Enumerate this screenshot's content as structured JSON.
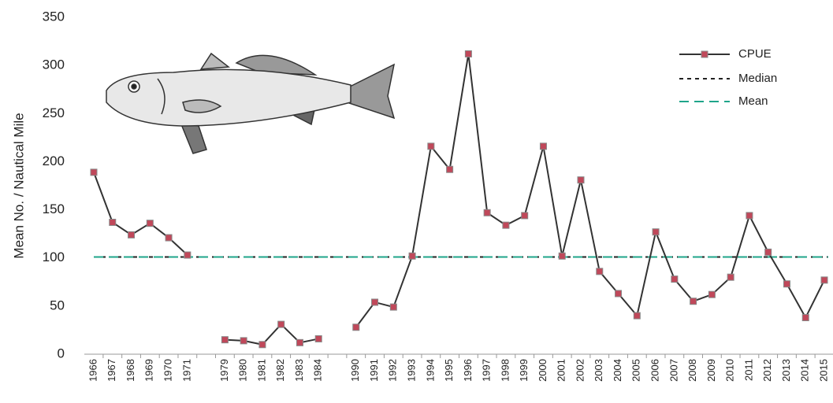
{
  "chart_data": {
    "type": "line",
    "y_label": "Mean No. / Nautical Mile",
    "categories": [
      "1966",
      "1967",
      "1968",
      "1969",
      "1970",
      "1971",
      null,
      "1979",
      "1980",
      "1981",
      "1982",
      "1983",
      "1984",
      null,
      "1990",
      "1991",
      "1992",
      "1993",
      "1994",
      "1995",
      "1996",
      "1997",
      "1998",
      "1999",
      "2000",
      "2001",
      "2002",
      "2003",
      "2004",
      "2005",
      "2006",
      "2007",
      "2008",
      "2009",
      "2010",
      "2011",
      "2012",
      "2013",
      "2014",
      "2015"
    ],
    "series": [
      {
        "name": "CPUE",
        "color": "#333333",
        "marker_color": "#c0485a",
        "values": [
          189,
          137,
          124,
          136,
          121,
          103,
          null,
          15,
          14,
          10,
          31,
          12,
          16,
          null,
          28,
          54,
          49,
          102,
          216,
          192,
          312,
          147,
          134,
          144,
          216,
          102,
          181,
          86,
          63,
          40,
          127,
          78,
          55,
          62,
          80,
          144,
          106,
          73,
          38,
          77
        ]
      }
    ],
    "reference_lines": [
      {
        "name": "Median",
        "value": 101,
        "color": "#222222",
        "dash": "5,5"
      },
      {
        "name": "Mean",
        "value": 101,
        "color": "#1fa58a",
        "dash": "12,7"
      }
    ],
    "ylim": [
      0,
      350
    ],
    "yticks": [
      0,
      50,
      100,
      150,
      200,
      250,
      300,
      350
    ],
    "legend": "top-right"
  }
}
